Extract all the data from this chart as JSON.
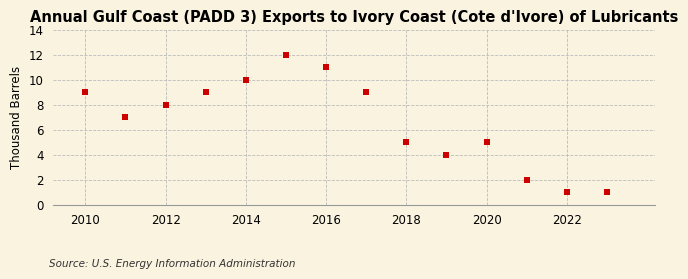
{
  "title": "Annual Gulf Coast (PADD 3) Exports to Ivory Coast (Cote d'Ivore) of Lubricants",
  "ylabel": "Thousand Barrels",
  "source": "Source: U.S. Energy Information Administration",
  "years": [
    2010,
    2011,
    2012,
    2013,
    2014,
    2015,
    2016,
    2017,
    2018,
    2019,
    2020,
    2021,
    2022,
    2023
  ],
  "values": [
    9,
    7,
    8,
    9,
    10,
    12,
    11,
    9,
    5,
    4,
    5,
    2,
    1,
    1
  ],
  "marker_color": "#cc0000",
  "marker": "s",
  "marker_size": 4,
  "ylim": [
    0,
    14
  ],
  "yticks": [
    0,
    2,
    4,
    6,
    8,
    10,
    12,
    14
  ],
  "xticks": [
    2010,
    2012,
    2014,
    2016,
    2018,
    2020,
    2022
  ],
  "background_color": "#faf3e0",
  "grid_color": "#bbbbbb",
  "title_fontsize": 10.5,
  "label_fontsize": 8.5,
  "tick_fontsize": 8.5,
  "source_fontsize": 7.5
}
